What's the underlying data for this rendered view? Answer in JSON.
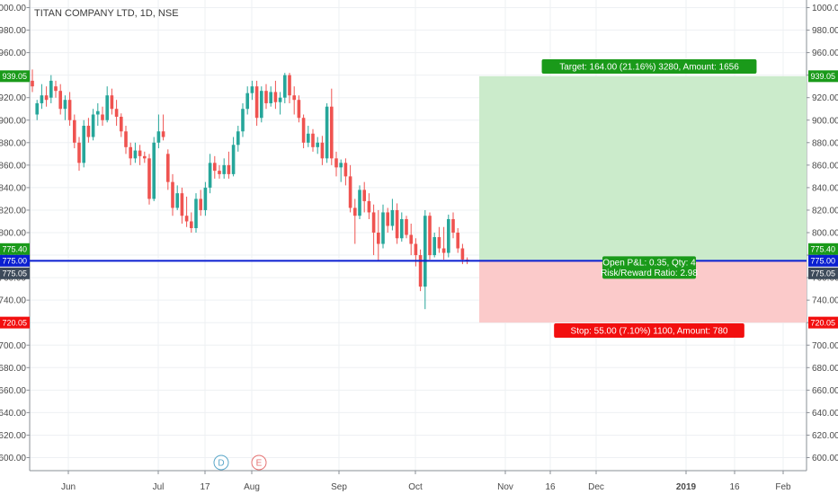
{
  "chart_data": {
    "type": "candlestick",
    "title": "TITAN COMPANY LTD, 1D, NSE",
    "ylim": [
      590,
      1005
    ],
    "y_ticks": [
      600,
      620,
      640,
      660,
      680,
      700,
      720,
      740,
      760,
      780,
      800,
      820,
      840,
      860,
      880,
      900,
      920,
      940,
      960,
      980,
      1000
    ],
    "x_labels": [
      "Jun",
      "Jul",
      "17",
      "Aug",
      "Sep",
      "Oct",
      "Nov",
      "16",
      "Dec",
      "2019",
      "16",
      "Feb"
    ],
    "x_label_bold": "2019",
    "grid": true,
    "colors": {
      "up": "#26a69a",
      "down": "#ef5350",
      "line": "#0a1fd1",
      "target": "#1a9a1a",
      "stop": "#f20f0f",
      "entry_tag": "#3d4a5a"
    },
    "price_tags": [
      {
        "label": "939.05",
        "value": 939.05,
        "role": "target"
      },
      {
        "label": "775.40",
        "value": 775.4,
        "role": "target"
      },
      {
        "label": "775.00",
        "value": 775.0,
        "role": "line"
      },
      {
        "label": "775.05",
        "value": 775.05,
        "role": "entry"
      },
      {
        "label": "720.05",
        "value": 720.05,
        "role": "stop"
      }
    ],
    "horizontal_line": {
      "value": 775.0
    },
    "position": {
      "entry": 775.05,
      "target": 939.05,
      "stop": 720.05,
      "target_label": "Target: 164.00 (21.16%) 3280, Amount: 1656",
      "stop_label": "Stop: 55.00 (7.10%) 1100, Amount: 780",
      "pnl_label": "Open P&L: 0.35, Qty: 4",
      "ratio_label": "Risk/Reward Ratio: 2.98"
    },
    "markers": [
      {
        "text": "D",
        "color": "#5aa7c9"
      },
      {
        "text": "E",
        "color": "#e57373"
      }
    ],
    "candles": [
      {
        "o": 935,
        "h": 945,
        "l": 925,
        "c": 930
      },
      {
        "o": 905,
        "h": 918,
        "l": 900,
        "c": 915
      },
      {
        "o": 915,
        "h": 932,
        "l": 910,
        "c": 922
      },
      {
        "o": 922,
        "h": 930,
        "l": 912,
        "c": 918
      },
      {
        "o": 920,
        "h": 940,
        "l": 915,
        "c": 935
      },
      {
        "o": 930,
        "h": 935,
        "l": 920,
        "c": 926
      },
      {
        "o": 926,
        "h": 932,
        "l": 905,
        "c": 910
      },
      {
        "o": 910,
        "h": 922,
        "l": 900,
        "c": 918
      },
      {
        "o": 918,
        "h": 925,
        "l": 895,
        "c": 900
      },
      {
        "o": 900,
        "h": 905,
        "l": 875,
        "c": 880
      },
      {
        "o": 880,
        "h": 885,
        "l": 855,
        "c": 862
      },
      {
        "o": 862,
        "h": 900,
        "l": 858,
        "c": 895
      },
      {
        "o": 895,
        "h": 902,
        "l": 880,
        "c": 885
      },
      {
        "o": 885,
        "h": 910,
        "l": 882,
        "c": 905
      },
      {
        "o": 905,
        "h": 915,
        "l": 895,
        "c": 908
      },
      {
        "o": 905,
        "h": 912,
        "l": 895,
        "c": 900
      },
      {
        "o": 900,
        "h": 930,
        "l": 898,
        "c": 922
      },
      {
        "o": 922,
        "h": 928,
        "l": 905,
        "c": 910
      },
      {
        "o": 910,
        "h": 918,
        "l": 895,
        "c": 903
      },
      {
        "o": 903,
        "h": 906,
        "l": 885,
        "c": 890
      },
      {
        "o": 890,
        "h": 895,
        "l": 870,
        "c": 876
      },
      {
        "o": 876,
        "h": 880,
        "l": 860,
        "c": 866
      },
      {
        "o": 866,
        "h": 880,
        "l": 862,
        "c": 873
      },
      {
        "o": 873,
        "h": 878,
        "l": 860,
        "c": 868
      },
      {
        "o": 868,
        "h": 872,
        "l": 862,
        "c": 866
      },
      {
        "o": 866,
        "h": 870,
        "l": 825,
        "c": 830
      },
      {
        "o": 830,
        "h": 885,
        "l": 828,
        "c": 880
      },
      {
        "o": 880,
        "h": 905,
        "l": 875,
        "c": 890
      },
      {
        "o": 890,
        "h": 905,
        "l": 882,
        "c": 885
      },
      {
        "o": 870,
        "h": 874,
        "l": 838,
        "c": 845
      },
      {
        "o": 845,
        "h": 852,
        "l": 815,
        "c": 822
      },
      {
        "o": 822,
        "h": 842,
        "l": 820,
        "c": 835
      },
      {
        "o": 835,
        "h": 840,
        "l": 808,
        "c": 815
      },
      {
        "o": 815,
        "h": 832,
        "l": 805,
        "c": 810
      },
      {
        "o": 810,
        "h": 818,
        "l": 800,
        "c": 804
      },
      {
        "o": 804,
        "h": 835,
        "l": 800,
        "c": 830
      },
      {
        "o": 830,
        "h": 838,
        "l": 815,
        "c": 820
      },
      {
        "o": 820,
        "h": 845,
        "l": 815,
        "c": 840
      },
      {
        "o": 840,
        "h": 870,
        "l": 835,
        "c": 862
      },
      {
        "o": 862,
        "h": 868,
        "l": 848,
        "c": 855
      },
      {
        "o": 855,
        "h": 860,
        "l": 848,
        "c": 852
      },
      {
        "o": 852,
        "h": 866,
        "l": 848,
        "c": 860
      },
      {
        "o": 860,
        "h": 872,
        "l": 848,
        "c": 852
      },
      {
        "o": 852,
        "h": 885,
        "l": 850,
        "c": 878
      },
      {
        "o": 878,
        "h": 895,
        "l": 872,
        "c": 890
      },
      {
        "o": 890,
        "h": 915,
        "l": 885,
        "c": 910
      },
      {
        "o": 910,
        "h": 930,
        "l": 905,
        "c": 924
      },
      {
        "o": 924,
        "h": 935,
        "l": 918,
        "c": 930
      },
      {
        "o": 930,
        "h": 935,
        "l": 895,
        "c": 902
      },
      {
        "o": 902,
        "h": 930,
        "l": 898,
        "c": 926
      },
      {
        "o": 926,
        "h": 932,
        "l": 910,
        "c": 915
      },
      {
        "o": 915,
        "h": 930,
        "l": 912,
        "c": 925
      },
      {
        "o": 925,
        "h": 935,
        "l": 910,
        "c": 916
      },
      {
        "o": 916,
        "h": 925,
        "l": 905,
        "c": 920
      },
      {
        "o": 920,
        "h": 942,
        "l": 915,
        "c": 940
      },
      {
        "o": 940,
        "h": 942,
        "l": 915,
        "c": 922
      },
      {
        "o": 922,
        "h": 930,
        "l": 905,
        "c": 918
      },
      {
        "o": 918,
        "h": 922,
        "l": 898,
        "c": 902
      },
      {
        "o": 902,
        "h": 905,
        "l": 875,
        "c": 880
      },
      {
        "o": 880,
        "h": 895,
        "l": 876,
        "c": 888
      },
      {
        "o": 888,
        "h": 892,
        "l": 872,
        "c": 876
      },
      {
        "o": 876,
        "h": 885,
        "l": 870,
        "c": 880
      },
      {
        "o": 880,
        "h": 886,
        "l": 860,
        "c": 866
      },
      {
        "o": 866,
        "h": 915,
        "l": 862,
        "c": 912
      },
      {
        "o": 912,
        "h": 928,
        "l": 860,
        "c": 866
      },
      {
        "o": 866,
        "h": 872,
        "l": 850,
        "c": 858
      },
      {
        "o": 858,
        "h": 865,
        "l": 845,
        "c": 862
      },
      {
        "o": 862,
        "h": 866,
        "l": 842,
        "c": 850
      },
      {
        "o": 850,
        "h": 860,
        "l": 818,
        "c": 822
      },
      {
        "o": 822,
        "h": 830,
        "l": 790,
        "c": 815
      },
      {
        "o": 815,
        "h": 842,
        "l": 812,
        "c": 838
      },
      {
        "o": 838,
        "h": 845,
        "l": 818,
        "c": 828
      },
      {
        "o": 828,
        "h": 835,
        "l": 812,
        "c": 818
      },
      {
        "o": 818,
        "h": 825,
        "l": 780,
        "c": 800
      },
      {
        "o": 800,
        "h": 820,
        "l": 775,
        "c": 790
      },
      {
        "o": 790,
        "h": 825,
        "l": 786,
        "c": 818
      },
      {
        "o": 818,
        "h": 822,
        "l": 800,
        "c": 806
      },
      {
        "o": 806,
        "h": 830,
        "l": 802,
        "c": 820
      },
      {
        "o": 820,
        "h": 826,
        "l": 790,
        "c": 795
      },
      {
        "o": 795,
        "h": 818,
        "l": 792,
        "c": 812
      },
      {
        "o": 812,
        "h": 815,
        "l": 795,
        "c": 798
      },
      {
        "o": 798,
        "h": 808,
        "l": 780,
        "c": 790
      },
      {
        "o": 790,
        "h": 795,
        "l": 770,
        "c": 780
      },
      {
        "o": 780,
        "h": 785,
        "l": 748,
        "c": 752
      },
      {
        "o": 752,
        "h": 820,
        "l": 732,
        "c": 815
      },
      {
        "o": 815,
        "h": 818,
        "l": 776,
        "c": 780
      },
      {
        "o": 780,
        "h": 800,
        "l": 778,
        "c": 796
      },
      {
        "o": 796,
        "h": 805,
        "l": 782,
        "c": 786
      },
      {
        "o": 786,
        "h": 805,
        "l": 776,
        "c": 782
      },
      {
        "o": 782,
        "h": 816,
        "l": 778,
        "c": 812
      },
      {
        "o": 812,
        "h": 818,
        "l": 795,
        "c": 800
      },
      {
        "o": 800,
        "h": 804,
        "l": 782,
        "c": 786
      },
      {
        "o": 786,
        "h": 790,
        "l": 772,
        "c": 776
      },
      {
        "o": 776,
        "h": 778,
        "l": 772,
        "c": 775
      }
    ]
  }
}
